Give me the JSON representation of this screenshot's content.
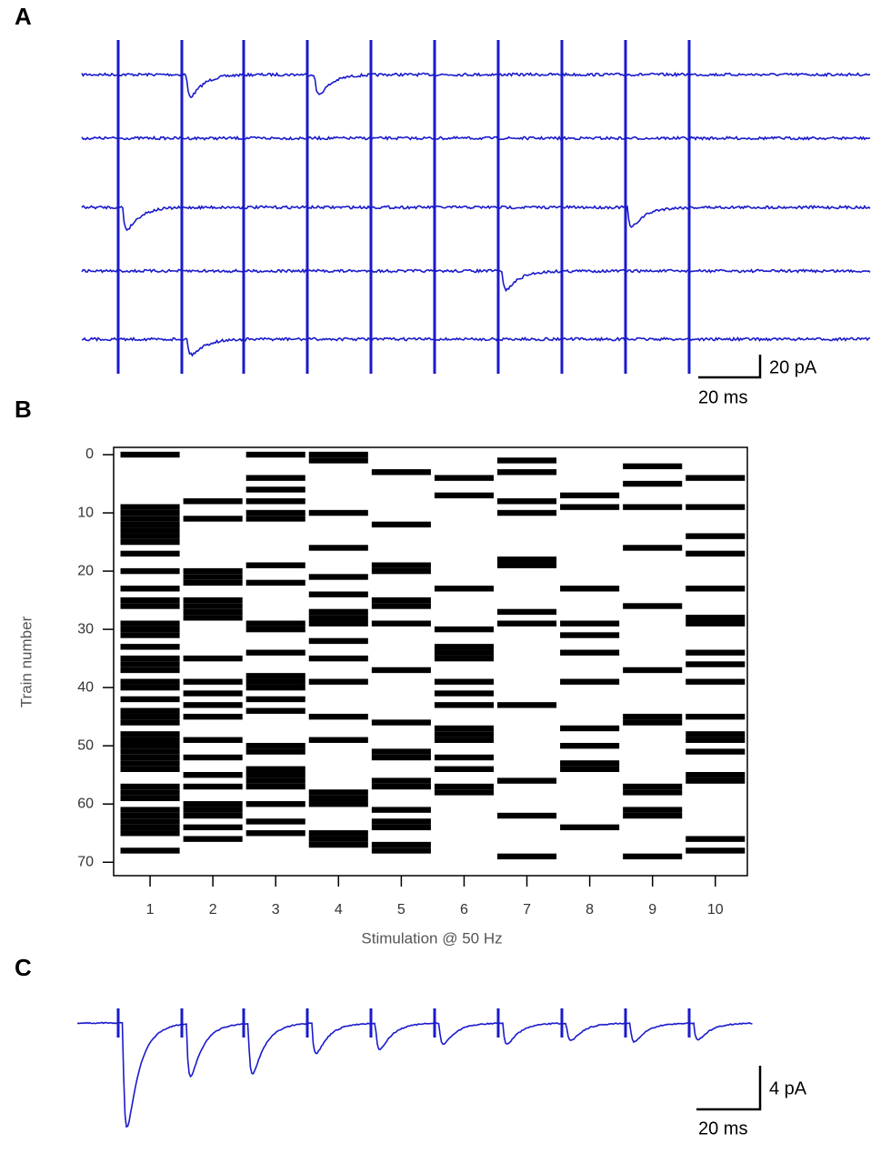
{
  "panels": {
    "a": {
      "label": "A",
      "scale_y": "20 pA",
      "scale_x": "20 ms"
    },
    "b": {
      "label": "B"
    },
    "c": {
      "label": "C",
      "scale_y": "4 pA",
      "scale_x": "20 ms"
    }
  },
  "chart_data": {
    "type": "raster",
    "x_label": "Stimulation @ 50 Hz",
    "y_label": "Train number",
    "x": [
      1,
      2,
      3,
      4,
      5,
      6,
      7,
      8,
      9,
      10
    ],
    "trains": [
      [
        0,
        9,
        10,
        11,
        12,
        13,
        14,
        15,
        17,
        20,
        23,
        25,
        26,
        29,
        30,
        31,
        33,
        35,
        36,
        37,
        39,
        40,
        42,
        44,
        45,
        46,
        48,
        49,
        50,
        51,
        52,
        53,
        54,
        57,
        58,
        59,
        61,
        62,
        63,
        64,
        65,
        68
      ],
      [
        8,
        11,
        20,
        21,
        22,
        25,
        26,
        27,
        28,
        35,
        39,
        41,
        43,
        45,
        49,
        52,
        55,
        57,
        60,
        61,
        62,
        64,
        66
      ],
      [
        0,
        4,
        6,
        8,
        10,
        11,
        19,
        22,
        29,
        30,
        34,
        38,
        39,
        40,
        42,
        44,
        50,
        51,
        54,
        55,
        56,
        57,
        60,
        63,
        65
      ],
      [
        0,
        1,
        10,
        16,
        21,
        24,
        27,
        28,
        29,
        32,
        35,
        39,
        45,
        49,
        58,
        59,
        60,
        65,
        66,
        67
      ],
      [
        3,
        12,
        19,
        20,
        25,
        26,
        29,
        37,
        46,
        51,
        52,
        56,
        57,
        61,
        63,
        64,
        67,
        68
      ],
      [
        4,
        7,
        23,
        30,
        33,
        34,
        35,
        39,
        41,
        43,
        47,
        48,
        49,
        52,
        54,
        57,
        58
      ],
      [
        1,
        3,
        8,
        10,
        18,
        19,
        27,
        29,
        43,
        56,
        62,
        69
      ],
      [
        7,
        9,
        23,
        29,
        31,
        34,
        39,
        47,
        50,
        53,
        54,
        64
      ],
      [
        2,
        5,
        9,
        16,
        26,
        37,
        45,
        46,
        57,
        58,
        61,
        62,
        69
      ],
      [
        4,
        9,
        14,
        17,
        23,
        28,
        29,
        34,
        36,
        39,
        45,
        48,
        49,
        51,
        55,
        56,
        66,
        68
      ]
    ],
    "color": "#000000",
    "xlim": [
      0.42,
      10.51
    ],
    "ylim": [
      -1.25,
      72.3
    ],
    "y_reversed": true,
    "xticks": [
      1,
      2,
      3,
      4,
      5,
      6,
      7,
      8,
      9,
      10
    ],
    "yticks": [
      0,
      10,
      20,
      30,
      40,
      50,
      60,
      70
    ]
  }
}
